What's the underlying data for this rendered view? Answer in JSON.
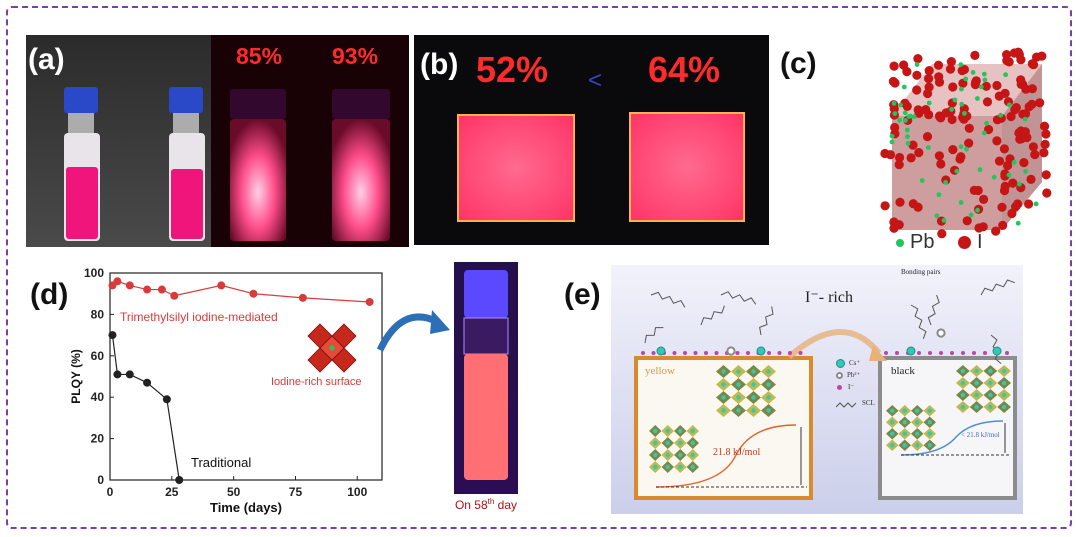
{
  "panel_a": {
    "label": "(a)",
    "qy_left": "85%",
    "qy_right": "93%"
  },
  "panel_b": {
    "label": "(b)",
    "qy_left": "52%",
    "qy_right": "64%",
    "compare_symbol": "<"
  },
  "panel_c": {
    "label": "(c)",
    "legend_pb": "Pb",
    "legend_i": "I",
    "pb_color": "#22c55e",
    "i_color": "#c51515"
  },
  "panel_d": {
    "label": "(d)",
    "vial_caption_pre": "On 58",
    "vial_caption_sup": "th",
    "vial_caption_post": " day",
    "annotation": "Iodine-rich surface",
    "chart_data": {
      "type": "line",
      "xlabel": "Time (days)",
      "ylabel": "PLQY (%)",
      "xlim": [
        0,
        110
      ],
      "ylim": [
        0,
        100
      ],
      "x_ticks": [
        0,
        25,
        50,
        75,
        100
      ],
      "y_ticks": [
        0,
        20,
        40,
        60,
        80,
        100
      ],
      "series": [
        {
          "name": "Trimethylsilyl iodine-mediated",
          "color": "#d93b3b",
          "x": [
            1,
            3,
            8,
            15,
            21,
            26,
            45,
            58,
            78,
            105
          ],
          "y": [
            94,
            96,
            94,
            92,
            92,
            89,
            94,
            90,
            88,
            86
          ]
        },
        {
          "name": "Traditional",
          "color": "#222222",
          "x": [
            1,
            3,
            8,
            15,
            23,
            28
          ],
          "y": [
            70,
            51,
            51,
            47,
            39,
            0
          ]
        }
      ]
    }
  },
  "panel_e": {
    "label": "(e)",
    "rich_label": "I⁻- rich",
    "bonding_pairs": "Bonding pairs",
    "yellow": "yellow",
    "black": "black",
    "energy_left": "21.8 kJ/mol",
    "energy_right": "< 21.8 kJ/mol",
    "legend": [
      {
        "label": "Cs⁺",
        "color": "#35c7b5"
      },
      {
        "label": "Pb²⁺",
        "color": "#8a8a8a"
      },
      {
        "label": "I⁻",
        "color": "#b54aa5"
      },
      {
        "label": "SCL",
        "color": "#555555"
      }
    ]
  }
}
